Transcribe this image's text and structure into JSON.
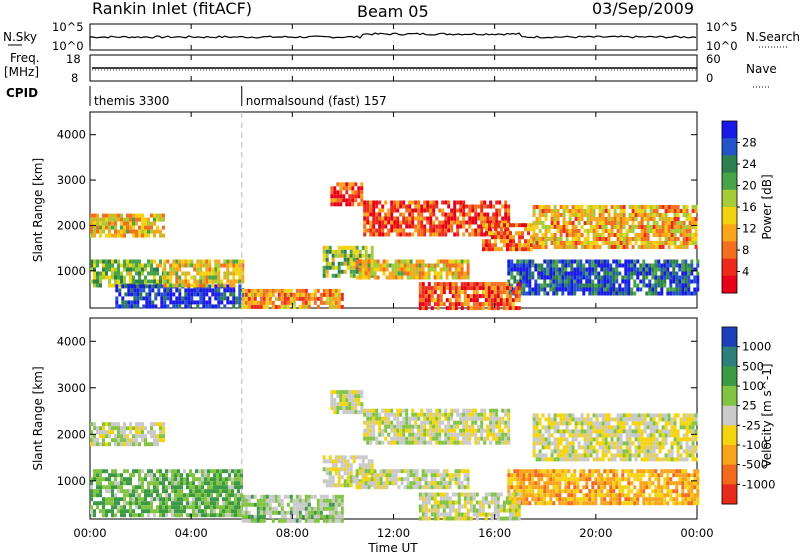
{
  "header": {
    "station": "Rankin Inlet (fitACF)",
    "beam": "Beam 05",
    "date": "03/Sep/2009"
  },
  "strip": {
    "nsky_label": "N.Sky",
    "nsky_ticks": [
      "10^5",
      "10^0"
    ],
    "nsearch_label": "N.Search",
    "nsearch_ticks": [
      "10^5",
      "10^0"
    ],
    "freq_label": "Freq.",
    "freq_unit": "[MHz]",
    "freq_ticks": [
      "18",
      "8"
    ],
    "nave_label": "Nave",
    "nave_ticks": [
      "60",
      "0"
    ],
    "cpid_label": "CPID",
    "modes": [
      {
        "name": "themis 3300",
        "start_hour": 0,
        "end_hour": 6
      },
      {
        "name": "normalsound (fast) 157",
        "start_hour": 6,
        "end_hour": 24
      }
    ]
  },
  "chart_data": [
    {
      "type": "heatmap",
      "panel": "power",
      "ylabel": "Slant Range [km]",
      "xlabel": "",
      "xlim": [
        0,
        24
      ],
      "ylim": [
        180,
        4500
      ],
      "y_ticks": [
        1000,
        2000,
        3000,
        4000
      ],
      "colorbar": {
        "label": "Power [dB]",
        "ticks": [
          "28",
          "24",
          "20",
          "16",
          "12",
          "8",
          "4"
        ],
        "colors": [
          "#1a1ae6",
          "#2355c8",
          "#2e7f4e",
          "#47a548",
          "#a7cb37",
          "#f3d20f",
          "#f9a51a",
          "#f36f1e",
          "#ee2a1c",
          "#e8001a"
        ]
      },
      "regions": [
        {
          "t0": 0.0,
          "t1": 2.9,
          "r0": 650,
          "r1": 1250,
          "v": 18
        },
        {
          "t0": 1.0,
          "t1": 6.0,
          "r0": 250,
          "r1": 700,
          "v": 26
        },
        {
          "t0": 0.0,
          "t1": 2.9,
          "r0": 1780,
          "r1": 2260,
          "v": 14
        },
        {
          "t0": 2.9,
          "t1": 6.0,
          "r0": 650,
          "r1": 1250,
          "v": 15
        },
        {
          "t0": 6.0,
          "t1": 10.0,
          "r0": 180,
          "r1": 600,
          "v": 12
        },
        {
          "t0": 9.2,
          "t1": 11.2,
          "r0": 900,
          "r1": 1550,
          "v": 18
        },
        {
          "t0": 10.5,
          "t1": 15.0,
          "r0": 850,
          "r1": 1250,
          "v": 14
        },
        {
          "t0": 9.5,
          "t1": 10.8,
          "r0": 2500,
          "r1": 2950,
          "v": 8
        },
        {
          "t0": 10.8,
          "t1": 16.5,
          "r0": 1800,
          "r1": 2550,
          "v": 8
        },
        {
          "t0": 15.5,
          "t1": 17.5,
          "r0": 1450,
          "r1": 2050,
          "v": 10
        },
        {
          "t0": 16.5,
          "t1": 24.0,
          "r0": 500,
          "r1": 1250,
          "v": 24
        },
        {
          "t0": 17.5,
          "t1": 24.0,
          "r0": 1500,
          "r1": 2450,
          "v": 13
        },
        {
          "t0": 13.0,
          "t1": 17.0,
          "r0": 200,
          "r1": 750,
          "v": 9
        }
      ]
    },
    {
      "type": "heatmap",
      "panel": "velocity",
      "ylabel": "Slant Range [km]",
      "xlabel": "Time UT",
      "xlim": [
        0,
        24
      ],
      "ylim": [
        180,
        4500
      ],
      "x_ticks": [
        "00:00",
        "04:00",
        "08:00",
        "12:00",
        "16:00",
        "20:00",
        "00:00"
      ],
      "y_ticks": [
        1000,
        2000,
        3000,
        4000
      ],
      "colorbar": {
        "label": "Velocity [m s^-1]",
        "ticks": [
          "1000",
          "500",
          "100",
          "25",
          "-25",
          "-100",
          "-500",
          "-1000"
        ],
        "colors": [
          "#1f3fb8",
          "#2c7f7a",
          "#3c9a47",
          "#80c442",
          "#c9c9c9",
          "#f3d40f",
          "#f9a31b",
          "#f36a1c",
          "#e72a1c"
        ]
      },
      "regions": [
        {
          "t0": 0.0,
          "t1": 2.9,
          "r0": 1780,
          "r1": 2260,
          "v": 0
        },
        {
          "t0": 0.0,
          "t1": 6.0,
          "r0": 250,
          "r1": 1250,
          "v": 300
        },
        {
          "t0": 6.0,
          "t1": 10.0,
          "r0": 180,
          "r1": 700,
          "v": 150
        },
        {
          "t0": 9.2,
          "t1": 11.2,
          "r0": 900,
          "r1": 1550,
          "v": -80
        },
        {
          "t0": 10.5,
          "t1": 15.0,
          "r0": 850,
          "r1": 1250,
          "v": 0
        },
        {
          "t0": 10.8,
          "t1": 16.5,
          "r0": 1800,
          "r1": 2550,
          "v": 0
        },
        {
          "t0": 9.5,
          "t1": 10.8,
          "r0": 2500,
          "r1": 2950,
          "v": 0
        },
        {
          "t0": 16.5,
          "t1": 24.0,
          "r0": 500,
          "r1": 1250,
          "v": -400
        },
        {
          "t0": 17.5,
          "t1": 24.0,
          "r0": 1500,
          "r1": 2450,
          "v": -60
        },
        {
          "t0": 13.0,
          "t1": 17.0,
          "r0": 200,
          "r1": 750,
          "v": 0
        }
      ]
    }
  ]
}
